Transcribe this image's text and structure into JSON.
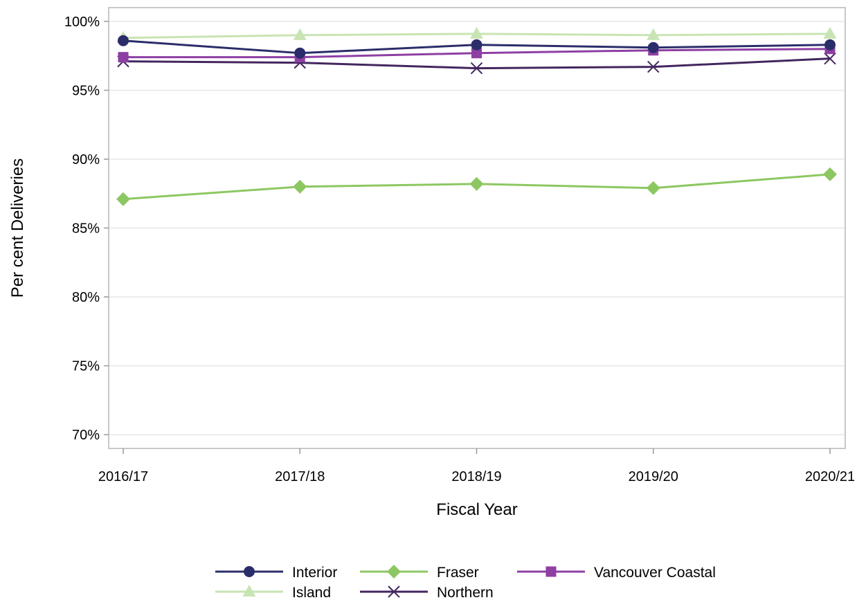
{
  "chart_data": {
    "type": "line",
    "title": "",
    "xlabel": "Fiscal Year",
    "ylabel": "Per cent Deliveries",
    "categories": [
      "2016/17",
      "2017/18",
      "2018/19",
      "2019/20",
      "2020/21"
    ],
    "ylim": [
      69,
      101
    ],
    "yticks": [
      70,
      75,
      80,
      85,
      90,
      95,
      100
    ],
    "ytick_labels": [
      "70%",
      "75%",
      "80%",
      "85%",
      "90%",
      "95%",
      "100%"
    ],
    "grid": true,
    "legend_position": "bottom",
    "series": [
      {
        "name": "Interior",
        "values": [
          98.6,
          97.7,
          98.3,
          98.1,
          98.3
        ],
        "color": "#2b2d6b",
        "marker": "circle"
      },
      {
        "name": "Fraser",
        "values": [
          87.1,
          88.0,
          88.2,
          87.9,
          88.9
        ],
        "color": "#8dc761",
        "marker": "diamond"
      },
      {
        "name": "Vancouver Coastal",
        "values": [
          97.4,
          97.4,
          97.7,
          97.9,
          98.0
        ],
        "color": "#8e3fa3",
        "marker": "square"
      },
      {
        "name": "Island",
        "values": [
          98.8,
          99.0,
          99.1,
          99.0,
          99.1
        ],
        "color": "#c8e4b3",
        "marker": "triangle"
      },
      {
        "name": "Northern",
        "values": [
          97.1,
          97.0,
          96.6,
          96.7,
          97.3
        ],
        "color": "#43265e",
        "marker": "x"
      }
    ]
  }
}
